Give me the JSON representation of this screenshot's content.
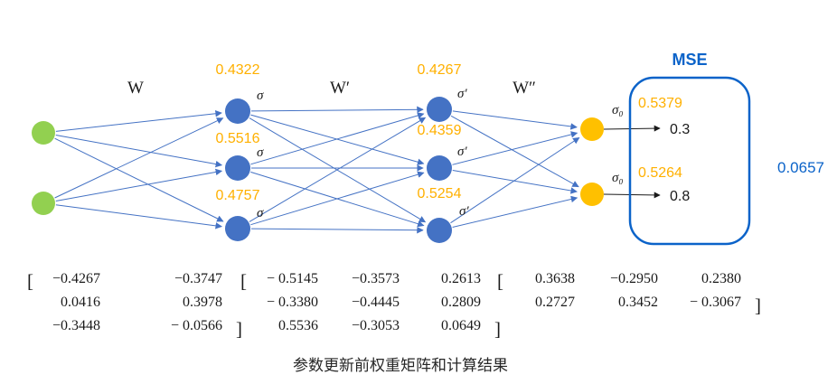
{
  "caption": "参数更新前权重矩阵和计算结果",
  "symbols": {
    "lbracket": "[",
    "rbracket": "]"
  },
  "colors": {
    "node_blue": "#4472c4",
    "node_green": "#92d050",
    "node_orange": "#ffc000",
    "edge_blue": "#4472c4",
    "accent_blue": "#0b63c9",
    "value_orange": "#ffb000",
    "text_dark": "#1a1a1a"
  },
  "network": {
    "weight_labels": [
      "W",
      "W′",
      "W″"
    ],
    "hidden_layer1": {
      "activation": "σ",
      "values": [
        "0.4322",
        "0.5516",
        "0.4757"
      ]
    },
    "hidden_layer2": {
      "activation": "σ′",
      "values": [
        "0.4267",
        "0.4359",
        "0.5254"
      ]
    },
    "output_layer": {
      "activation": "σ₀",
      "values": [
        "0.5379",
        "0.5264"
      ],
      "targets": [
        "0.3",
        "0.8"
      ]
    },
    "mse": {
      "label": "MSE",
      "value": "0.0657"
    }
  },
  "matrices": [
    {
      "rows": [
        [
          "−0.4267",
          "−0.3747"
        ],
        [
          "0.0416",
          "0.3978"
        ],
        [
          "−0.3448",
          "− 0.0566"
        ]
      ]
    },
    {
      "rows": [
        [
          "− 0.5145",
          "−0.3573",
          "0.2613"
        ],
        [
          "− 0.3380",
          "−0.4445",
          "0.2809"
        ],
        [
          "0.5536",
          "−0.3053",
          "0.0649"
        ]
      ]
    },
    {
      "rows": [
        [
          "0.3638",
          "−0.2950",
          "0.2380"
        ],
        [
          "0.2727",
          "0.3452",
          "− 0.3067"
        ]
      ]
    }
  ]
}
